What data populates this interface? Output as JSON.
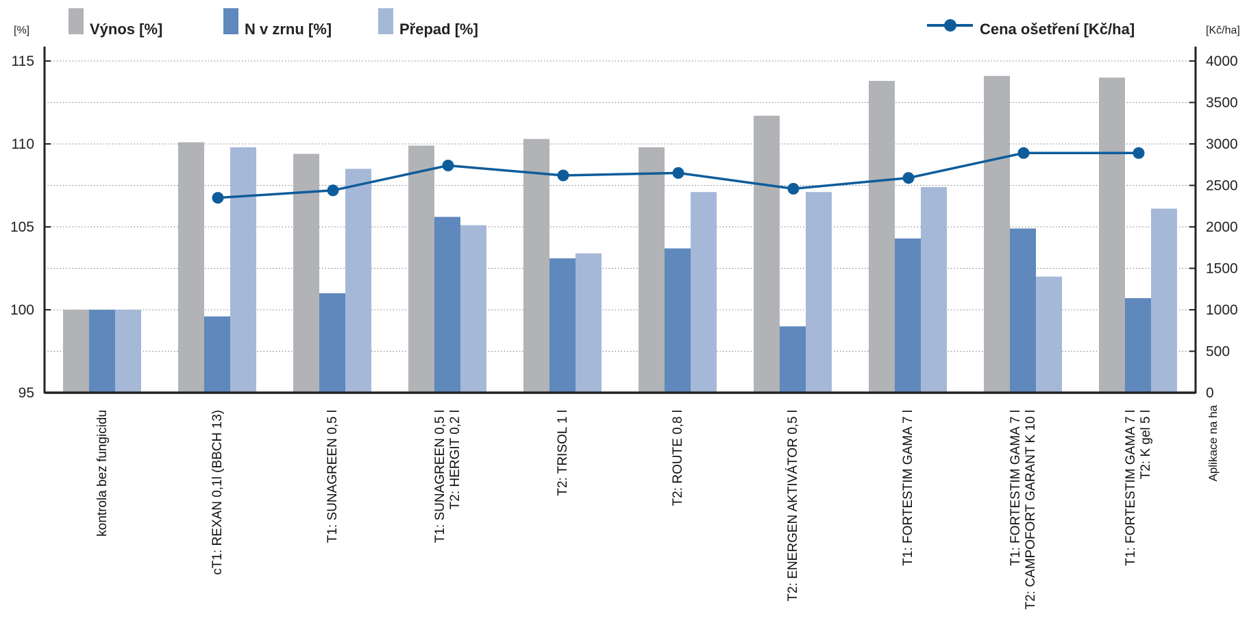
{
  "chart_data": {
    "type": "bar",
    "left_axis_unit": "[%]",
    "right_axis_unit": "[Kč/ha]",
    "x_axis_note": "Aplikace na ha",
    "ylim_left": [
      95,
      115
    ],
    "yticks_left": [
      "95",
      "100",
      "105",
      "110",
      "115"
    ],
    "ylim_right": [
      0,
      4000
    ],
    "yticks_right": [
      "0",
      "500",
      "1000",
      "1500",
      "2000",
      "2500",
      "3000",
      "3500",
      "4000"
    ],
    "grid": "dotted horizontal",
    "legend_position": "top",
    "categories": [
      [
        "kontrola bez fungicidu"
      ],
      [
        "cT1: REXAN 0,1l (BBCH 13)"
      ],
      [
        "T1: SUNAGREEN 0,5 l"
      ],
      [
        "T1: SUNAGREEN 0,5 l",
        "T2: HERGIT 0,2 l"
      ],
      [
        "T2: TRISOL 1 l"
      ],
      [
        "T2: ROUTE 0,8 l"
      ],
      [
        "T2: ENERGEN AKTIVÁTOR 0,5 l"
      ],
      [
        "T1: FORTESTIM GAMA 7 l"
      ],
      [
        "T1: FORTESTIM GAMA 7 l",
        "T2: CAMPOFORT GARANT K 10 l"
      ],
      [
        "T1: FORTESTIM GAMA 7 l",
        "T2: K gel 5 l"
      ]
    ],
    "series": [
      {
        "name": "Výnos [%]",
        "color": "#b1b3b6",
        "axis": "left",
        "kind": "bar",
        "values": [
          100,
          110.1,
          109.4,
          109.9,
          110.3,
          109.8,
          111.7,
          113.8,
          114.1,
          114.0
        ]
      },
      {
        "name": "N v zrnu [%]",
        "color": "#5f88bc",
        "axis": "left",
        "kind": "bar",
        "values": [
          100,
          99.6,
          101.0,
          105.6,
          103.1,
          103.7,
          99.0,
          104.3,
          104.9,
          100.7
        ]
      },
      {
        "name": "Přepad [%]",
        "color": "#a6b8d8",
        "axis": "left",
        "kind": "bar",
        "values": [
          100,
          109.8,
          108.5,
          105.1,
          103.4,
          107.1,
          107.1,
          107.4,
          102.0,
          106.1
        ]
      },
      {
        "name": "Cena ošetření [Kč/ha]",
        "color": "#0f5c9a",
        "axis": "right",
        "kind": "line",
        "values": [
          null,
          2350,
          2440,
          2740,
          2620,
          2650,
          2460,
          2590,
          2890,
          2890
        ]
      }
    ]
  }
}
